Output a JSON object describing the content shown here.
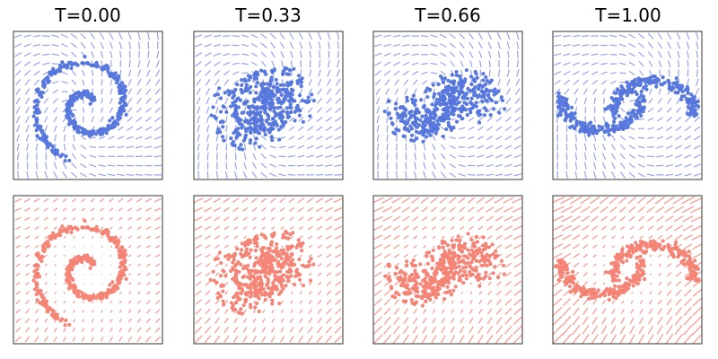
{
  "titles": [
    "T=0.00",
    "T=0.33",
    "T=0.66",
    "T=1.00"
  ],
  "colors": {
    "top_points": "#3d62d8",
    "top_arrows": "#8c99ee",
    "bottom_points": "#f37060",
    "bottom_arrows": "#f59a90",
    "frame": "#333333"
  },
  "times": [
    0.0,
    0.33,
    0.66,
    1.0
  ],
  "rows": [
    {
      "name": "top",
      "description_key": "blue vector field with points"
    },
    {
      "name": "bottom",
      "description_key": "red vector field with points"
    }
  ]
}
